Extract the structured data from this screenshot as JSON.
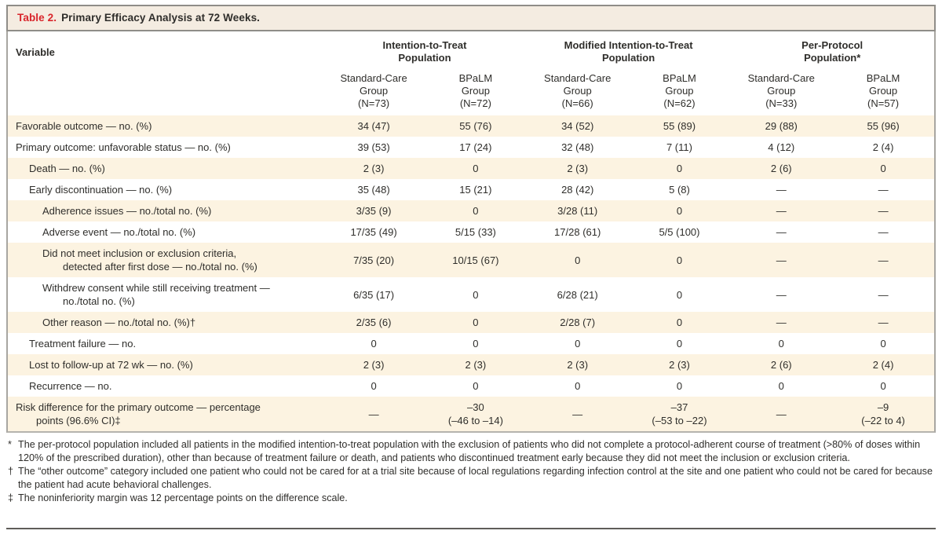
{
  "title": {
    "label": "Table 2.",
    "text": "Primary Efficacy Analysis at 72 Weeks."
  },
  "table": {
    "variable_header": "Variable",
    "column_groups": [
      {
        "label": "Intention-to-Treat\nPopulation"
      },
      {
        "label": "Modified Intention-to-Treat\nPopulation"
      },
      {
        "label": "Per-Protocol\nPopulation*"
      }
    ],
    "columns": [
      "Standard-Care\nGroup\n(N=73)",
      "BPaLM\nGroup\n(N=72)",
      "Standard-Care\nGroup\n(N=66)",
      "BPaLM\nGroup\n(N=62)",
      "Standard-Care\nGroup\n(N=33)",
      "BPaLM\nGroup\n(N=57)"
    ],
    "rows": [
      {
        "label": "Favorable outcome — no. (%)",
        "indent": 0,
        "values": [
          "34 (47)",
          "55 (76)",
          "34 (52)",
          "55 (89)",
          "29 (88)",
          "55 (96)"
        ]
      },
      {
        "label": "Primary outcome: unfavorable status — no. (%)",
        "indent": 0,
        "values": [
          "39 (53)",
          "17 (24)",
          "32 (48)",
          "7 (11)",
          "4 (12)",
          "2 (4)"
        ]
      },
      {
        "label": "Death — no. (%)",
        "indent": 1,
        "values": [
          "2 (3)",
          "0",
          "2 (3)",
          "0",
          "2 (6)",
          "0"
        ]
      },
      {
        "label": "Early discontinuation — no. (%)",
        "indent": 1,
        "values": [
          "35 (48)",
          "15 (21)",
          "28 (42)",
          "5 (8)",
          "—",
          "—"
        ]
      },
      {
        "label": "Adherence issues — no./total no. (%)",
        "indent": 2,
        "values": [
          "3/35 (9)",
          "0",
          "3/28 (11)",
          "0",
          "—",
          "—"
        ]
      },
      {
        "label": "Adverse event — no./total no. (%)",
        "indent": 2,
        "values": [
          "17/35 (49)",
          "5/15 (33)",
          "17/28 (61)",
          "5/5 (100)",
          "—",
          "—"
        ]
      },
      {
        "label": "Did not meet inclusion or exclusion criteria,\ndetected after first dose — no./total no. (%)",
        "indent": 2,
        "values": [
          "7/35 (20)",
          "10/15 (67)",
          "0",
          "0",
          "—",
          "—"
        ]
      },
      {
        "label": "Withdrew consent while still receiving treatment —\nno./total no. (%)",
        "indent": 2,
        "values": [
          "6/35 (17)",
          "0",
          "6/28 (21)",
          "0",
          "—",
          "—"
        ]
      },
      {
        "label": "Other reason — no./total no. (%)†",
        "indent": 2,
        "values": [
          "2/35 (6)",
          "0",
          "2/28 (7)",
          "0",
          "—",
          "—"
        ]
      },
      {
        "label": "Treatment failure — no.",
        "indent": 1,
        "values": [
          "0",
          "0",
          "0",
          "0",
          "0",
          "0"
        ]
      },
      {
        "label": "Lost to follow-up at 72 wk — no. (%)",
        "indent": 1,
        "values": [
          "2 (3)",
          "2 (3)",
          "2 (3)",
          "2 (3)",
          "2 (6)",
          "2 (4)"
        ]
      },
      {
        "label": "Recurrence — no.",
        "indent": 1,
        "values": [
          "0",
          "0",
          "0",
          "0",
          "0",
          "0"
        ]
      },
      {
        "label": "Risk difference for the primary outcome — percentage\npoints (96.6% CI)‡",
        "indent": 0,
        "values": [
          "—",
          "–30\n(–46 to –14)",
          "—",
          "–37\n(–53 to –22)",
          "—",
          "–9\n(–22 to 4)"
        ]
      }
    ]
  },
  "footnotes": [
    {
      "marker": "*",
      "text": "The per-protocol population included all patients in the modified intention-to-treat population with the exclusion of patients who did not complete a protocol-adherent course of treatment (>80% of doses within 120% of the prescribed duration), other than because of treatment failure or death, and patients who discontinued treatment early because they did not meet the inclusion or exclusion criteria."
    },
    {
      "marker": "†",
      "text": "The “other outcome” category included one patient who could not be cared for at a trial site because of local regulations regarding infection control at the site and one patient who could not be cared for because the patient had acute behavioral challenges."
    },
    {
      "marker": "‡",
      "text": "The noninferiority margin was 12 percentage points on the difference scale."
    }
  ],
  "colors": {
    "accent_red": "#d9252b",
    "stripe": "#fcf3e1",
    "title_bg": "#f4ece1",
    "border": "#8f8d88"
  }
}
